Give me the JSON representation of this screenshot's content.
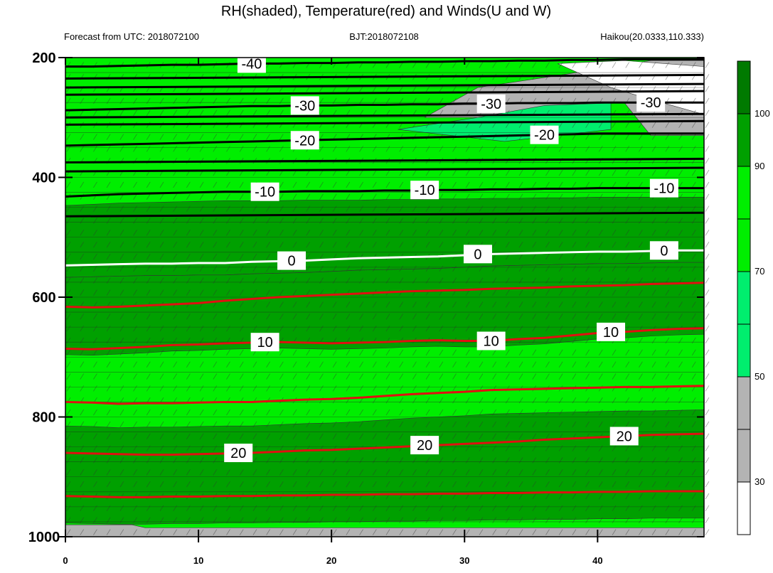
{
  "chart_data": {
    "type": "heatmap",
    "title": "RH(shaded), Temperature(red) and Winds(U and W)",
    "subtitle_left": "Forecast from UTC: 2018072100",
    "subtitle_center": "BJT:2018072108",
    "subtitle_right": "Haikou(20.0333,110.333)",
    "xlabel": "",
    "ylabel": "",
    "x_ticks": [
      0,
      10,
      20,
      30,
      40
    ],
    "xlim": [
      0,
      48
    ],
    "y_ticks": [
      200,
      400,
      600,
      800,
      1000
    ],
    "ylim": [
      200,
      1000
    ],
    "y_inverted": true,
    "grid": false,
    "colorbar": {
      "position": "right",
      "levels": [
        0,
        30,
        40,
        50,
        60,
        70,
        80,
        90,
        100,
        110
      ],
      "tick_labels": [
        "30",
        "50",
        "70",
        "90",
        "100"
      ],
      "tick_values": [
        30,
        50,
        70,
        90,
        100
      ],
      "colors": [
        "#ffffff",
        "#b3b3b3",
        "#b3b3b3",
        "#00ee6e",
        "#00ee6e",
        "#00ee00",
        "#00ee00",
        "#00a000",
        "#007a00"
      ]
    },
    "rh_bands": [
      {
        "label": ">90",
        "pressure_range": [
          430,
          560
        ],
        "color": "#00a000"
      },
      {
        "label": ">90",
        "pressure_range": [
          560,
          700
        ],
        "color": "#00a000"
      },
      {
        "label": "70-90",
        "pressure_range": [
          200,
          430
        ],
        "color": "#00ee00"
      },
      {
        "label": "<50",
        "pressure_range": [
          230,
          320
        ],
        "color": "#b3b3b3"
      }
    ],
    "temperature_isotherms": [
      {
        "label": "-40",
        "pressure": [
          215,
          215,
          214,
          213,
          212,
          212,
          211,
          210,
          210,
          209,
          209,
          208,
          208,
          207,
          207,
          206,
          206,
          205,
          205,
          204,
          204,
          203,
          203,
          203,
          203
        ]
      },
      {
        "label": "-30",
        "pressure": [
          288,
          287,
          286,
          285,
          284,
          283,
          282,
          281,
          281,
          280,
          280,
          279,
          279,
          278,
          278,
          277,
          277,
          276,
          276,
          276,
          275,
          275,
          275,
          275,
          275
        ]
      },
      {
        "label": "-20",
        "pressure": [
          347,
          346,
          345,
          344,
          343,
          342,
          341,
          340,
          339,
          338,
          337,
          336,
          335,
          334,
          333,
          332,
          331,
          330,
          329,
          328,
          327,
          327,
          327,
          327,
          327
        ]
      },
      {
        "label": "-10",
        "pressure": [
          432,
          430,
          428,
          427,
          426,
          425,
          424,
          424,
          424,
          423,
          423,
          423,
          422,
          422,
          421,
          421,
          420,
          420,
          419,
          419,
          418,
          418,
          418,
          418,
          418
        ]
      },
      {
        "label": "0",
        "pressure": [
          547,
          546,
          545,
          544,
          544,
          543,
          543,
          541,
          540,
          539,
          537,
          535,
          534,
          533,
          532,
          530,
          528,
          527,
          526,
          525,
          524,
          524,
          523,
          522,
          522
        ]
      },
      {
        "label": "",
        "pressure": [
          616,
          617,
          616,
          614,
          612,
          610,
          606,
          603,
          600,
          598,
          596,
          594,
          592,
          590,
          589,
          588,
          586,
          585,
          584,
          582,
          581,
          580,
          578,
          577,
          576
        ]
      },
      {
        "label": "10",
        "pressure": [
          686,
          687,
          685,
          683,
          680,
          679,
          677,
          676,
          675,
          676,
          677,
          676,
          675,
          673,
          672,
          673,
          673,
          670,
          668,
          664,
          660,
          658,
          655,
          653,
          652
        ]
      },
      {
        "label": "",
        "pressure": [
          775,
          776,
          778,
          777,
          777,
          776,
          775,
          775,
          773,
          771,
          770,
          768,
          765,
          762,
          760,
          758,
          755,
          754,
          753,
          752,
          751,
          750,
          750,
          749,
          748
        ]
      },
      {
        "label": "20",
        "pressure": [
          860,
          861,
          862,
          863,
          863,
          862,
          861,
          860,
          858,
          856,
          855,
          853,
          851,
          849,
          847,
          845,
          843,
          841,
          838,
          836,
          834,
          832,
          830,
          829,
          828
        ]
      },
      {
        "label": "",
        "pressure": [
          932,
          933,
          934,
          934,
          933,
          933,
          932,
          932,
          931,
          931,
          930,
          930,
          929,
          929,
          928,
          928,
          927,
          927,
          926,
          926,
          925,
          925,
          924,
          924,
          924
        ]
      }
    ],
    "isotherm_x": [
      0,
      2,
      4,
      6,
      8,
      10,
      12,
      14,
      16,
      18,
      20,
      22,
      24,
      26,
      28,
      30,
      32,
      34,
      36,
      38,
      40,
      42,
      44,
      46,
      48
    ]
  }
}
